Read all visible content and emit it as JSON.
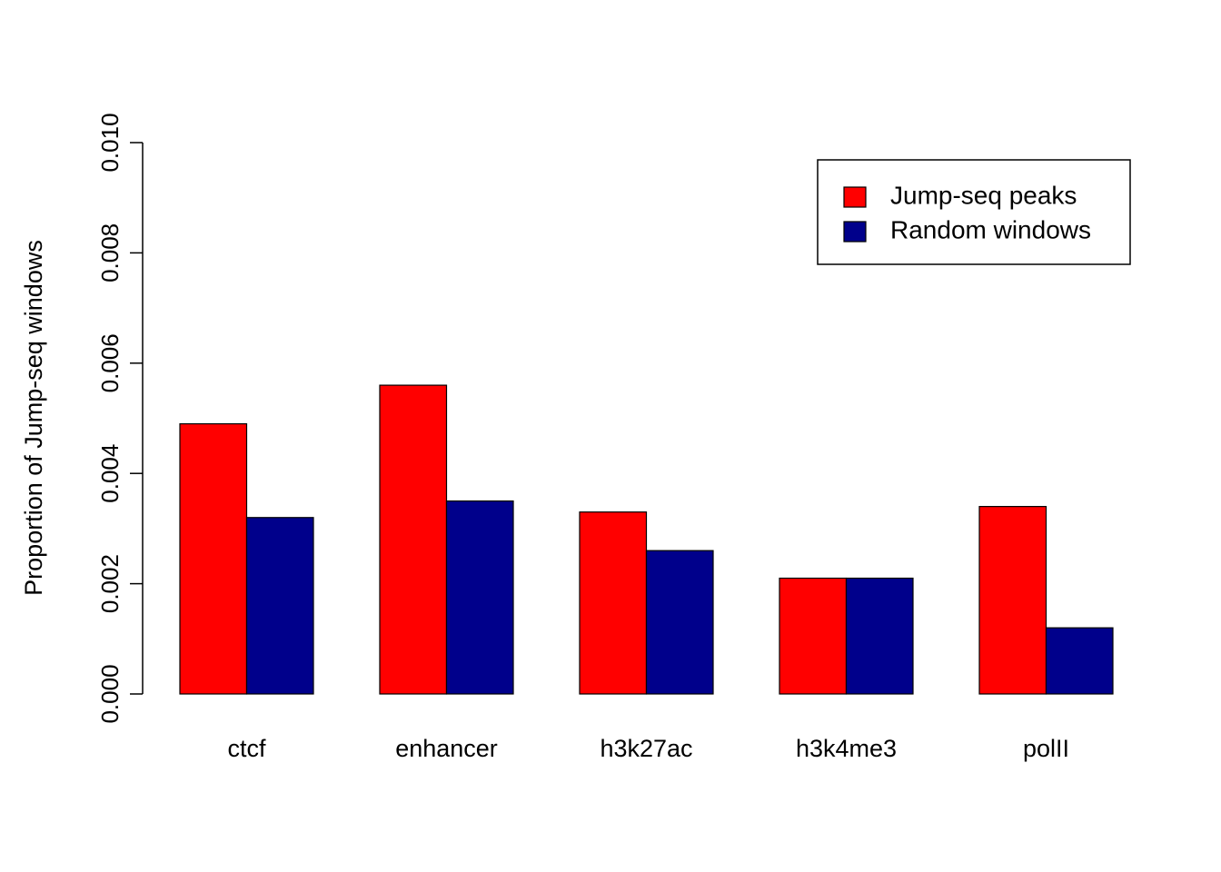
{
  "chart_data": {
    "type": "bar",
    "grouped": true,
    "categories": [
      "ctcf",
      "enhancer",
      "h3k27ac",
      "h3k4me3",
      "polII"
    ],
    "series": [
      {
        "name": "Jump-seq peaks",
        "color": "#ff0000",
        "values": [
          0.0049,
          0.0056,
          0.0033,
          0.0021,
          0.0034
        ]
      },
      {
        "name": "Random windows",
        "color": "#00008b",
        "values": [
          0.0032,
          0.0035,
          0.0026,
          0.0021,
          0.0012
        ]
      }
    ],
    "title": "",
    "xlabel": "",
    "ylabel": "Proportion of Jump-seq windows",
    "ylim": [
      0,
      0.01
    ],
    "yticks": [
      "0.000",
      "0.002",
      "0.004",
      "0.006",
      "0.008",
      "0.010"
    ],
    "grid": false,
    "legend_position": "top-right"
  }
}
